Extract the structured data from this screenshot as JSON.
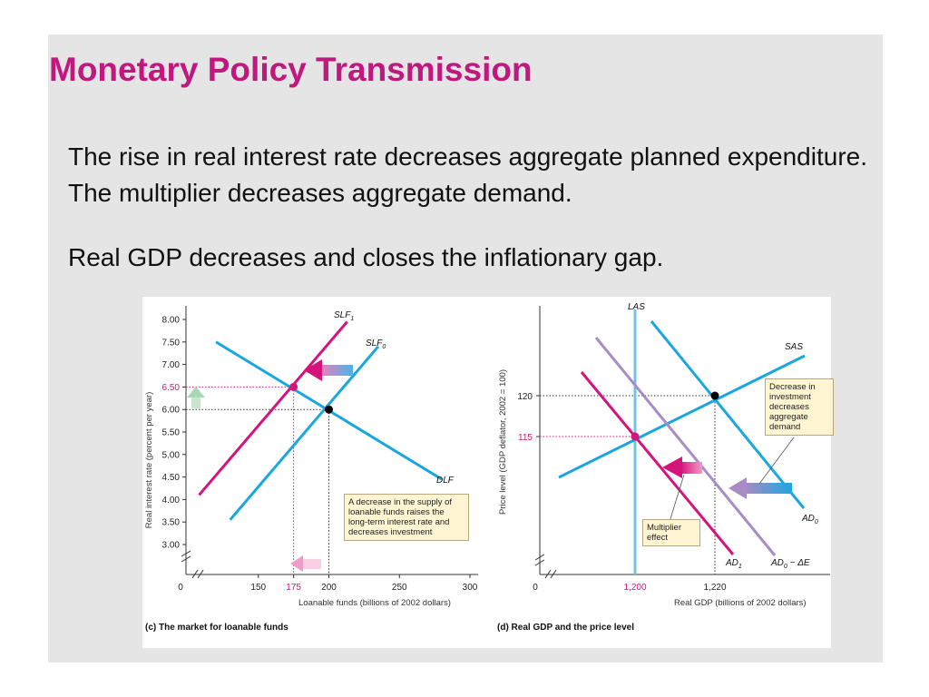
{
  "slide": {
    "title": "Monetary Policy Transmission",
    "paragraph1": "The rise in real interest rate decreases aggregate planned expenditure. The multiplier decreases aggregate demand.",
    "paragraph2": "Real GDP decreases and closes the inflationary gap."
  },
  "colors": {
    "title": "#c0187e",
    "blue_curve": "#1aa7df",
    "magenta_curve": "#d4147a",
    "purple_curve": "#a98bc6",
    "las": "#6dc6ea",
    "note_bg": "#fff5d2"
  },
  "chart_data": [
    {
      "type": "line",
      "caption": "(c) The market for loanable funds",
      "xlabel": "Loanable funds (billions of 2002 dollars)",
      "ylabel": "Real interest rate (percent per year)",
      "xlim": [
        100,
        300
      ],
      "ylim": [
        3.0,
        8.0
      ],
      "x_ticks": [
        "0",
        "150",
        "175",
        "200",
        "250",
        "300"
      ],
      "y_ticks": [
        "3.00",
        "3.50",
        "4.00",
        "4.50",
        "5.00",
        "5.50",
        "6.00",
        "6.50",
        "7.00",
        "7.50",
        "8.00"
      ],
      "series": [
        {
          "name": "DLF",
          "points": [
            [
              120,
              7.5
            ],
            [
              280,
              4.45
            ]
          ]
        },
        {
          "name": "SLF0",
          "points": [
            [
              130,
              3.55
            ],
            [
              235,
              7.4
            ]
          ]
        },
        {
          "name": "SLF1",
          "points": [
            [
              108,
              4.1
            ],
            [
              213,
              7.95
            ]
          ]
        }
      ],
      "equilibria": [
        {
          "x": 200,
          "y": 6.0,
          "color": "#000000"
        },
        {
          "x": 175,
          "y": 6.5,
          "color": "#d4147a"
        }
      ],
      "note": "A decrease in the supply of loanable funds raises the long-term interest rate and decreases investment"
    },
    {
      "type": "line",
      "caption": "(d) Real GDP and the price level",
      "xlabel": "Real GDP (billions of 2002 dollars)",
      "ylabel": "Price level (GDP deflator, 2002 = 100)",
      "x_ticks": [
        "0",
        "1,200",
        "1,220"
      ],
      "y_ticks": [
        "115",
        "120"
      ],
      "series": [
        {
          "name": "LAS",
          "points": [
            [
              1200,
              0
            ],
            [
              1200,
              1
            ]
          ]
        },
        {
          "name": "SAS"
        },
        {
          "name": "AD0"
        },
        {
          "name": "AD0 − ΔE"
        },
        {
          "name": "AD1"
        }
      ],
      "equilibria": [
        {
          "x": 1220,
          "y": 120,
          "color": "#000000"
        },
        {
          "x": 1200,
          "y": 115,
          "color": "#d4147a"
        }
      ],
      "notes": {
        "investment": "Decrease in investment decreases aggregate demand",
        "multiplier": "Multiplier effect"
      }
    }
  ]
}
